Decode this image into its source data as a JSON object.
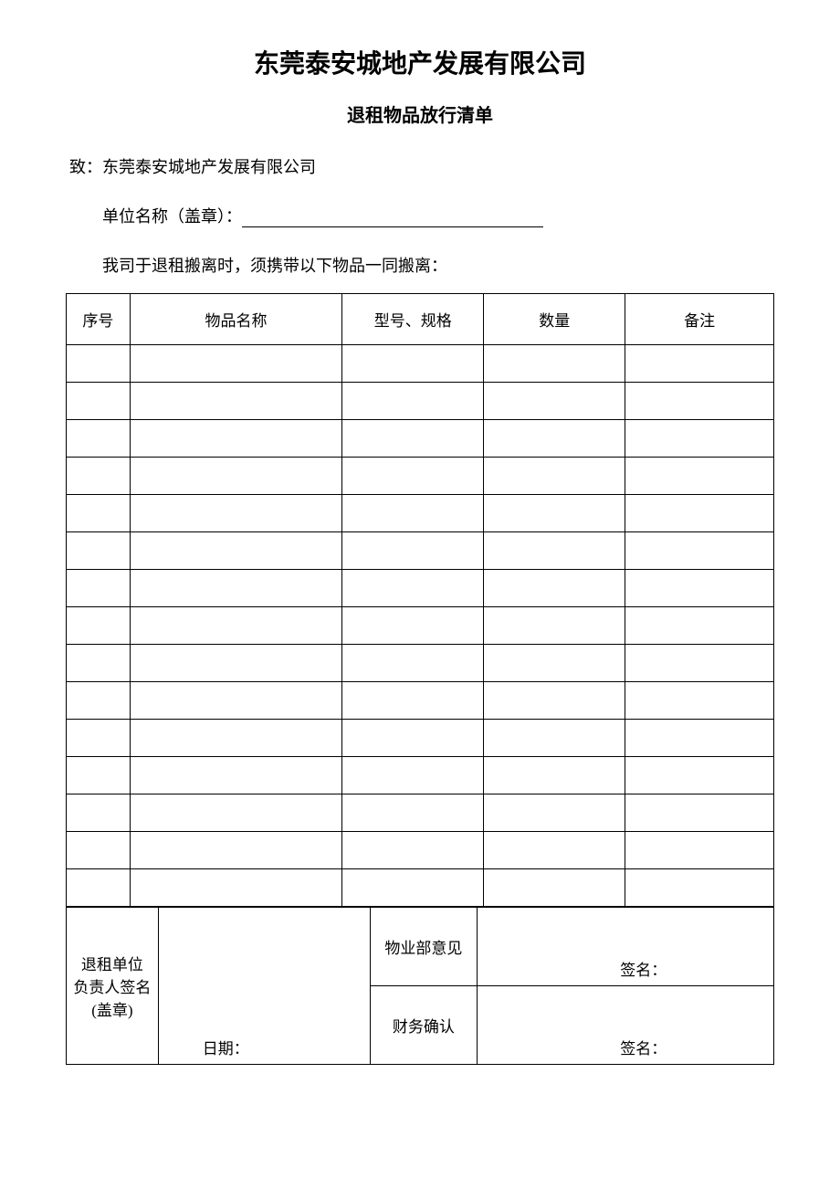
{
  "company_title": "东莞泰安城地产发展有限公司",
  "form_title": "退租物品放行清单",
  "addressee": "致：东莞泰安城地产发展有限公司",
  "unit_name_label": "单位名称（盖章）：",
  "instruction": "我司于退租搬离时，须携带以下物品一同搬离：",
  "table": {
    "headers": {
      "seq": "序号",
      "name": "物品名称",
      "spec": "型号、规格",
      "qty": "数量",
      "remark": "备注"
    },
    "row_count": 15
  },
  "footer": {
    "left_sign_label_line1": "退租单位",
    "left_sign_label_line2": "负责人签名",
    "left_sign_label_line3": "(盖章)",
    "date_label": "日期：",
    "opinion_label": "物业部意见",
    "finance_label": "财务确认",
    "signature_label": "签名："
  }
}
